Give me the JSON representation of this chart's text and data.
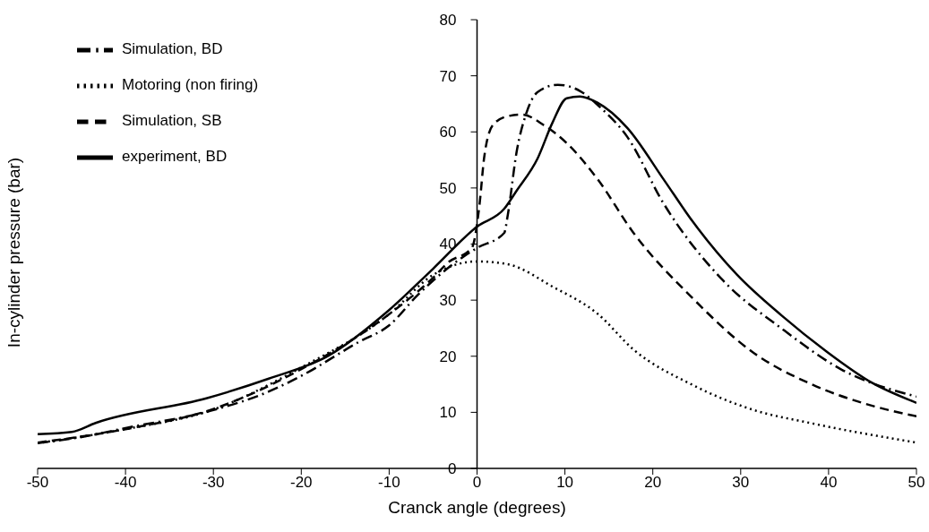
{
  "chart_data": {
    "type": "line",
    "xlabel": "Cranck angle (degrees)",
    "ylabel": "In-cylinder pressure (bar)",
    "xlim": [
      -50,
      50
    ],
    "xticks": [
      -50,
      -40,
      -30,
      -20,
      -10,
      0,
      10,
      20,
      30,
      40,
      50
    ],
    "ylim": [
      0,
      80
    ],
    "yticks": [
      0,
      10,
      20,
      30,
      40,
      50,
      60,
      70,
      80
    ],
    "grid": false,
    "legend": "top left",
    "marker": "none",
    "series": [
      {
        "name": "Simulation, BD",
        "color": "#000000",
        "line_style": "dashdot",
        "x": [
          -50,
          -45,
          -40,
          -30,
          -23.7,
          -20,
          -13.5,
          -10,
          -6.7,
          -1.6,
          0,
          3.1,
          3.5,
          4.5,
          5.6,
          6.9,
          9.2,
          11.7,
          14,
          17.1,
          21.2,
          28,
          34.7,
          41.5,
          50
        ],
        "values": [
          4.5,
          5.6,
          7.2,
          10.4,
          13.7,
          16.5,
          22.5,
          25.5,
          31,
          37.7,
          39.3,
          42,
          45.2,
          56.4,
          63.3,
          67.1,
          68.4,
          67.3,
          64.4,
          59.1,
          47.3,
          33.5,
          24.9,
          17.6,
          12.8
        ]
      },
      {
        "name": "Motoring (non firing)",
        "color": "#000000",
        "line_style": "dotted",
        "x": [
          -50,
          -40,
          -30,
          -20,
          -10,
          -5,
          0,
          3.5,
          8.6,
          13.7,
          17.8,
          24.5,
          31.3,
          38.2,
          50
        ],
        "values": [
          4.5,
          7,
          10.5,
          18,
          27.5,
          34.5,
          36.9,
          36.4,
          32.4,
          27.6,
          21.2,
          14.9,
          10.5,
          8,
          4.6
        ]
      },
      {
        "name": "Simulation, SB",
        "color": "#000000",
        "line_style": "dashed",
        "x": [
          -50,
          -40,
          -30,
          -20,
          -10,
          -5,
          -3.3,
          -0.6,
          0.3,
          0.8,
          1.8,
          3.5,
          5.1,
          7.6,
          10.2,
          13.7,
          17.8,
          24.5,
          31.3,
          38.2,
          44.9,
          50
        ],
        "values": [
          4.6,
          7,
          10.6,
          17.7,
          27.5,
          34,
          36.7,
          39.3,
          47.3,
          55.3,
          61.2,
          62.8,
          63.1,
          61.2,
          58,
          51.6,
          42,
          30.4,
          20.8,
          14.9,
          11.2,
          9.3
        ]
      },
      {
        "name": "experiment, BD",
        "color": "#000000",
        "line_style": "solid",
        "x": [
          -50,
          -46.1,
          -43.4,
          -30.8,
          -23.7,
          -16.9,
          -10.1,
          -5,
          0,
          3.1,
          4.5,
          6.9,
          8.6,
          10.2,
          11.7,
          13.7,
          17.1,
          21.2,
          24.5,
          29.6,
          34.7,
          39.8,
          44.9,
          50
        ],
        "values": [
          6.1,
          6.5,
          8.1,
          12.5,
          16,
          20.1,
          28.1,
          35.6,
          43.1,
          46.3,
          49.5,
          55.3,
          61.7,
          66,
          66.3,
          65.2,
          60.7,
          51.6,
          44.1,
          34.5,
          27.2,
          20.8,
          15.3,
          11.7
        ]
      }
    ]
  }
}
